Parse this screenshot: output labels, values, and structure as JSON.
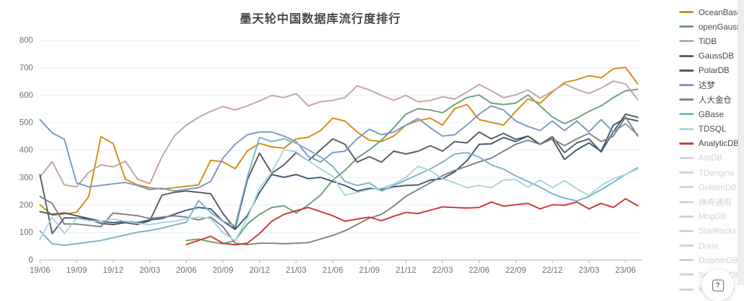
{
  "title": "墨天轮中国数据库流行度排行",
  "help_button": {
    "glyph": "?"
  },
  "axis_colors": {
    "grid": "#E6F0F7",
    "axis": "#AEB2BA",
    "label": "#6E7079"
  },
  "legend": {
    "position": "right",
    "inactive_color": "#cfd2d8",
    "items": [
      {
        "label": "OceanBase",
        "color": "#D48B12",
        "active": true
      },
      {
        "label": "openGauss",
        "color": "#6B9F77",
        "active": true
      },
      {
        "label": "TiDB",
        "color": "#C2A29D",
        "active": true
      },
      {
        "label": "GaussDB",
        "color": "#585A5F",
        "active": true
      },
      {
        "label": "PolarDB",
        "color": "#3E5873",
        "active": true
      },
      {
        "label": "达梦",
        "color": "#7897C6",
        "active": true
      },
      {
        "label": "人大金仓",
        "color": "#7E8084",
        "active": true
      },
      {
        "label": "GBase",
        "color": "#7EB1C8",
        "active": true
      },
      {
        "label": "TDSQL",
        "color": "#A9D6D9",
        "active": true
      },
      {
        "label": "AnalyticDB",
        "color": "#D23430",
        "active": true
      },
      {
        "label": "AntDB",
        "color": "#cfd2d8",
        "active": false
      },
      {
        "label": "TDengine",
        "color": "#cfd2d8",
        "active": false
      },
      {
        "label": "GoldenDB",
        "color": "#cfd2d8",
        "active": false
      },
      {
        "label": "神舟通用",
        "color": "#cfd2d8",
        "active": false
      },
      {
        "label": "MogDB",
        "color": "#cfd2d8",
        "active": false
      },
      {
        "label": "StarRocks",
        "color": "#cfd2d8",
        "active": false
      },
      {
        "label": "Doris",
        "color": "#cfd2d8",
        "active": false
      },
      {
        "label": "DolphinDB",
        "color": "#cfd2d8",
        "active": false
      },
      {
        "label": "SequoiaDB",
        "color": "#cfd2d8",
        "active": false
      },
      {
        "label": "Kyligence",
        "color": "#cfd2d8",
        "active": false
      }
    ]
  },
  "chart_data": {
    "type": "line",
    "title": "墨天轮中国数据库流行度排行",
    "xlabel": "",
    "ylabel": "",
    "ylim": [
      0,
      800
    ],
    "y_ticks": [
      0,
      100,
      200,
      300,
      400,
      500,
      600,
      700,
      800
    ],
    "grid": true,
    "legend_position": "right",
    "x": [
      "19/06",
      "19/07",
      "19/08",
      "19/09",
      "19/10",
      "19/11",
      "19/12",
      "20/01",
      "20/02",
      "20/03",
      "20/04",
      "20/05",
      "20/06",
      "20/07",
      "20/08",
      "20/09",
      "20/10",
      "20/11",
      "20/12",
      "21/01",
      "21/02",
      "21/03",
      "21/04",
      "21/05",
      "21/06",
      "21/07",
      "21/08",
      "21/09",
      "21/10",
      "21/11",
      "21/12",
      "22/01",
      "22/02",
      "22/03",
      "22/04",
      "22/05",
      "22/06",
      "22/07",
      "22/08",
      "22/09",
      "22/10",
      "22/11",
      "22/12",
      "23/01",
      "23/02",
      "23/03",
      "23/04",
      "23/05",
      "23/06",
      "23/07"
    ],
    "x_tick_labels": [
      "19/06",
      "19/09",
      "19/12",
      "20/03",
      "20/06",
      "20/09",
      "20/12",
      "21/03",
      "21/06",
      "21/09",
      "21/12",
      "22/03",
      "22/06",
      "22/09",
      "22/12",
      "23/03",
      "23/06"
    ],
    "series": [
      {
        "name": "OceanBase",
        "color": "#D48B12",
        "values": [
          200,
          162,
          167,
          172,
          230,
          448,
          423,
          293,
          272,
          262,
          257,
          262,
          267,
          272,
          362,
          356,
          331,
          396,
          423,
          411,
          406,
          440,
          446,
          470,
          515,
          505,
          465,
          435,
          430,
          450,
          490,
          506,
          515,
          490,
          550,
          565,
          510,
          500,
          490,
          540,
          585,
          570,
          610,
          645,
          655,
          670,
          662,
          695,
          700,
          640
        ]
      },
      {
        "name": "openGauss",
        "color": "#6B9F77",
        "values": [
          null,
          null,
          null,
          null,
          null,
          null,
          null,
          null,
          null,
          null,
          null,
          null,
          70,
          75,
          65,
          58,
          70,
          130,
          165,
          190,
          196,
          170,
          200,
          235,
          290,
          325,
          370,
          400,
          435,
          480,
          530,
          550,
          545,
          535,
          565,
          590,
          600,
          570,
          565,
          570,
          600,
          560,
          520,
          495,
          515,
          540,
          560,
          590,
          615,
          620
        ]
      },
      {
        "name": "TiDB",
        "color": "#C2A29D",
        "values": [
          300,
          357,
          272,
          265,
          318,
          345,
          338,
          358,
          293,
          277,
          375,
          450,
          490,
          518,
          540,
          558,
          545,
          560,
          578,
          598,
          590,
          605,
          560,
          575,
          580,
          590,
          633,
          618,
          598,
          580,
          598,
          575,
          580,
          593,
          585,
          610,
          638,
          615,
          590,
          600,
          618,
          588,
          613,
          640,
          620,
          605,
          625,
          650,
          640,
          583
        ]
      },
      {
        "name": "GaussDB",
        "color": "#585A5F",
        "values": [
          310,
          95,
          152,
          152,
          148,
          132,
          128,
          135,
          128,
          142,
          235,
          245,
          250,
          245,
          240,
          168,
          113,
          290,
          388,
          315,
          345,
          390,
          360,
          400,
          440,
          420,
          355,
          375,
          355,
          395,
          385,
          395,
          415,
          395,
          430,
          425,
          465,
          440,
          460,
          438,
          450,
          420,
          448,
          390,
          425,
          440,
          392,
          465,
          530,
          518
        ]
      },
      {
        "name": "PolarDB",
        "color": "#3E5873",
        "values": [
          175,
          165,
          170,
          160,
          150,
          140,
          135,
          140,
          135,
          145,
          150,
          165,
          180,
          190,
          185,
          140,
          110,
          160,
          245,
          310,
          300,
          310,
          295,
          300,
          285,
          270,
          250,
          260,
          255,
          265,
          270,
          272,
          290,
          295,
          320,
          360,
          420,
          422,
          445,
          430,
          450,
          420,
          440,
          365,
          400,
          425,
          395,
          490,
          515,
          505
        ]
      },
      {
        "name": "达梦",
        "color": "#7897C6",
        "values": [
          510,
          462,
          438,
          280,
          265,
          270,
          276,
          281,
          270,
          255,
          260,
          250,
          256,
          262,
          285,
          370,
          420,
          455,
          465,
          465,
          450,
          430,
          376,
          355,
          390,
          395,
          440,
          475,
          455,
          465,
          490,
          514,
          480,
          450,
          455,
          490,
          530,
          560,
          545,
          505,
          485,
          470,
          505,
          470,
          505,
          465,
          510,
          465,
          495,
          455
        ]
      },
      {
        "name": "人大金仓",
        "color": "#7E8084",
        "values": [
          230,
          205,
          130,
          130,
          125,
          120,
          170,
          165,
          160,
          150,
          155,
          160,
          155,
          145,
          155,
          120,
          60,
          55,
          60,
          60,
          58,
          60,
          62,
          75,
          88,
          105,
          128,
          151,
          165,
          195,
          231,
          255,
          280,
          306,
          325,
          340,
          356,
          370,
          395,
          420,
          435,
          420,
          440,
          415,
          440,
          460,
          430,
          450,
          520,
          450
        ]
      },
      {
        "name": "GBase",
        "color": "#7EB1C8",
        "values": [
          105,
          58,
          52,
          58,
          64,
          70,
          80,
          90,
          100,
          106,
          115,
          126,
          136,
          215,
          172,
          140,
          124,
          300,
          445,
          430,
          440,
          424,
          400,
          374,
          340,
          285,
          270,
          280,
          250,
          270,
          290,
          310,
          330,
          355,
          385,
          390,
          374,
          345,
          330,
          305,
          285,
          264,
          240,
          224,
          214,
          230,
          255,
          282,
          310,
          335
        ]
      },
      {
        "name": "TDSQL",
        "color": "#A9D6D9",
        "values": [
          75,
          155,
          95,
          150,
          142,
          140,
          148,
          140,
          132,
          128,
          135,
          140,
          150,
          155,
          150,
          98,
          70,
          150,
          260,
          320,
          400,
          393,
          360,
          330,
          304,
          235,
          245,
          255,
          260,
          275,
          300,
          340,
          324,
          295,
          280,
          262,
          270,
          262,
          290,
          292,
          264,
          290,
          262,
          288,
          258,
          234,
          270,
          295,
          310,
          330
        ]
      },
      {
        "name": "AnalyticDB",
        "color": "#D23430",
        "values": [
          null,
          null,
          null,
          null,
          null,
          null,
          null,
          null,
          null,
          null,
          null,
          null,
          55,
          70,
          85,
          60,
          54,
          60,
          95,
          140,
          165,
          178,
          190,
          175,
          160,
          140,
          148,
          155,
          142,
          158,
          172,
          168,
          180,
          192,
          190,
          188,
          190,
          210,
          195,
          200,
          205,
          185,
          200,
          198,
          210,
          185,
          205,
          190,
          222,
          196
        ]
      }
    ]
  }
}
